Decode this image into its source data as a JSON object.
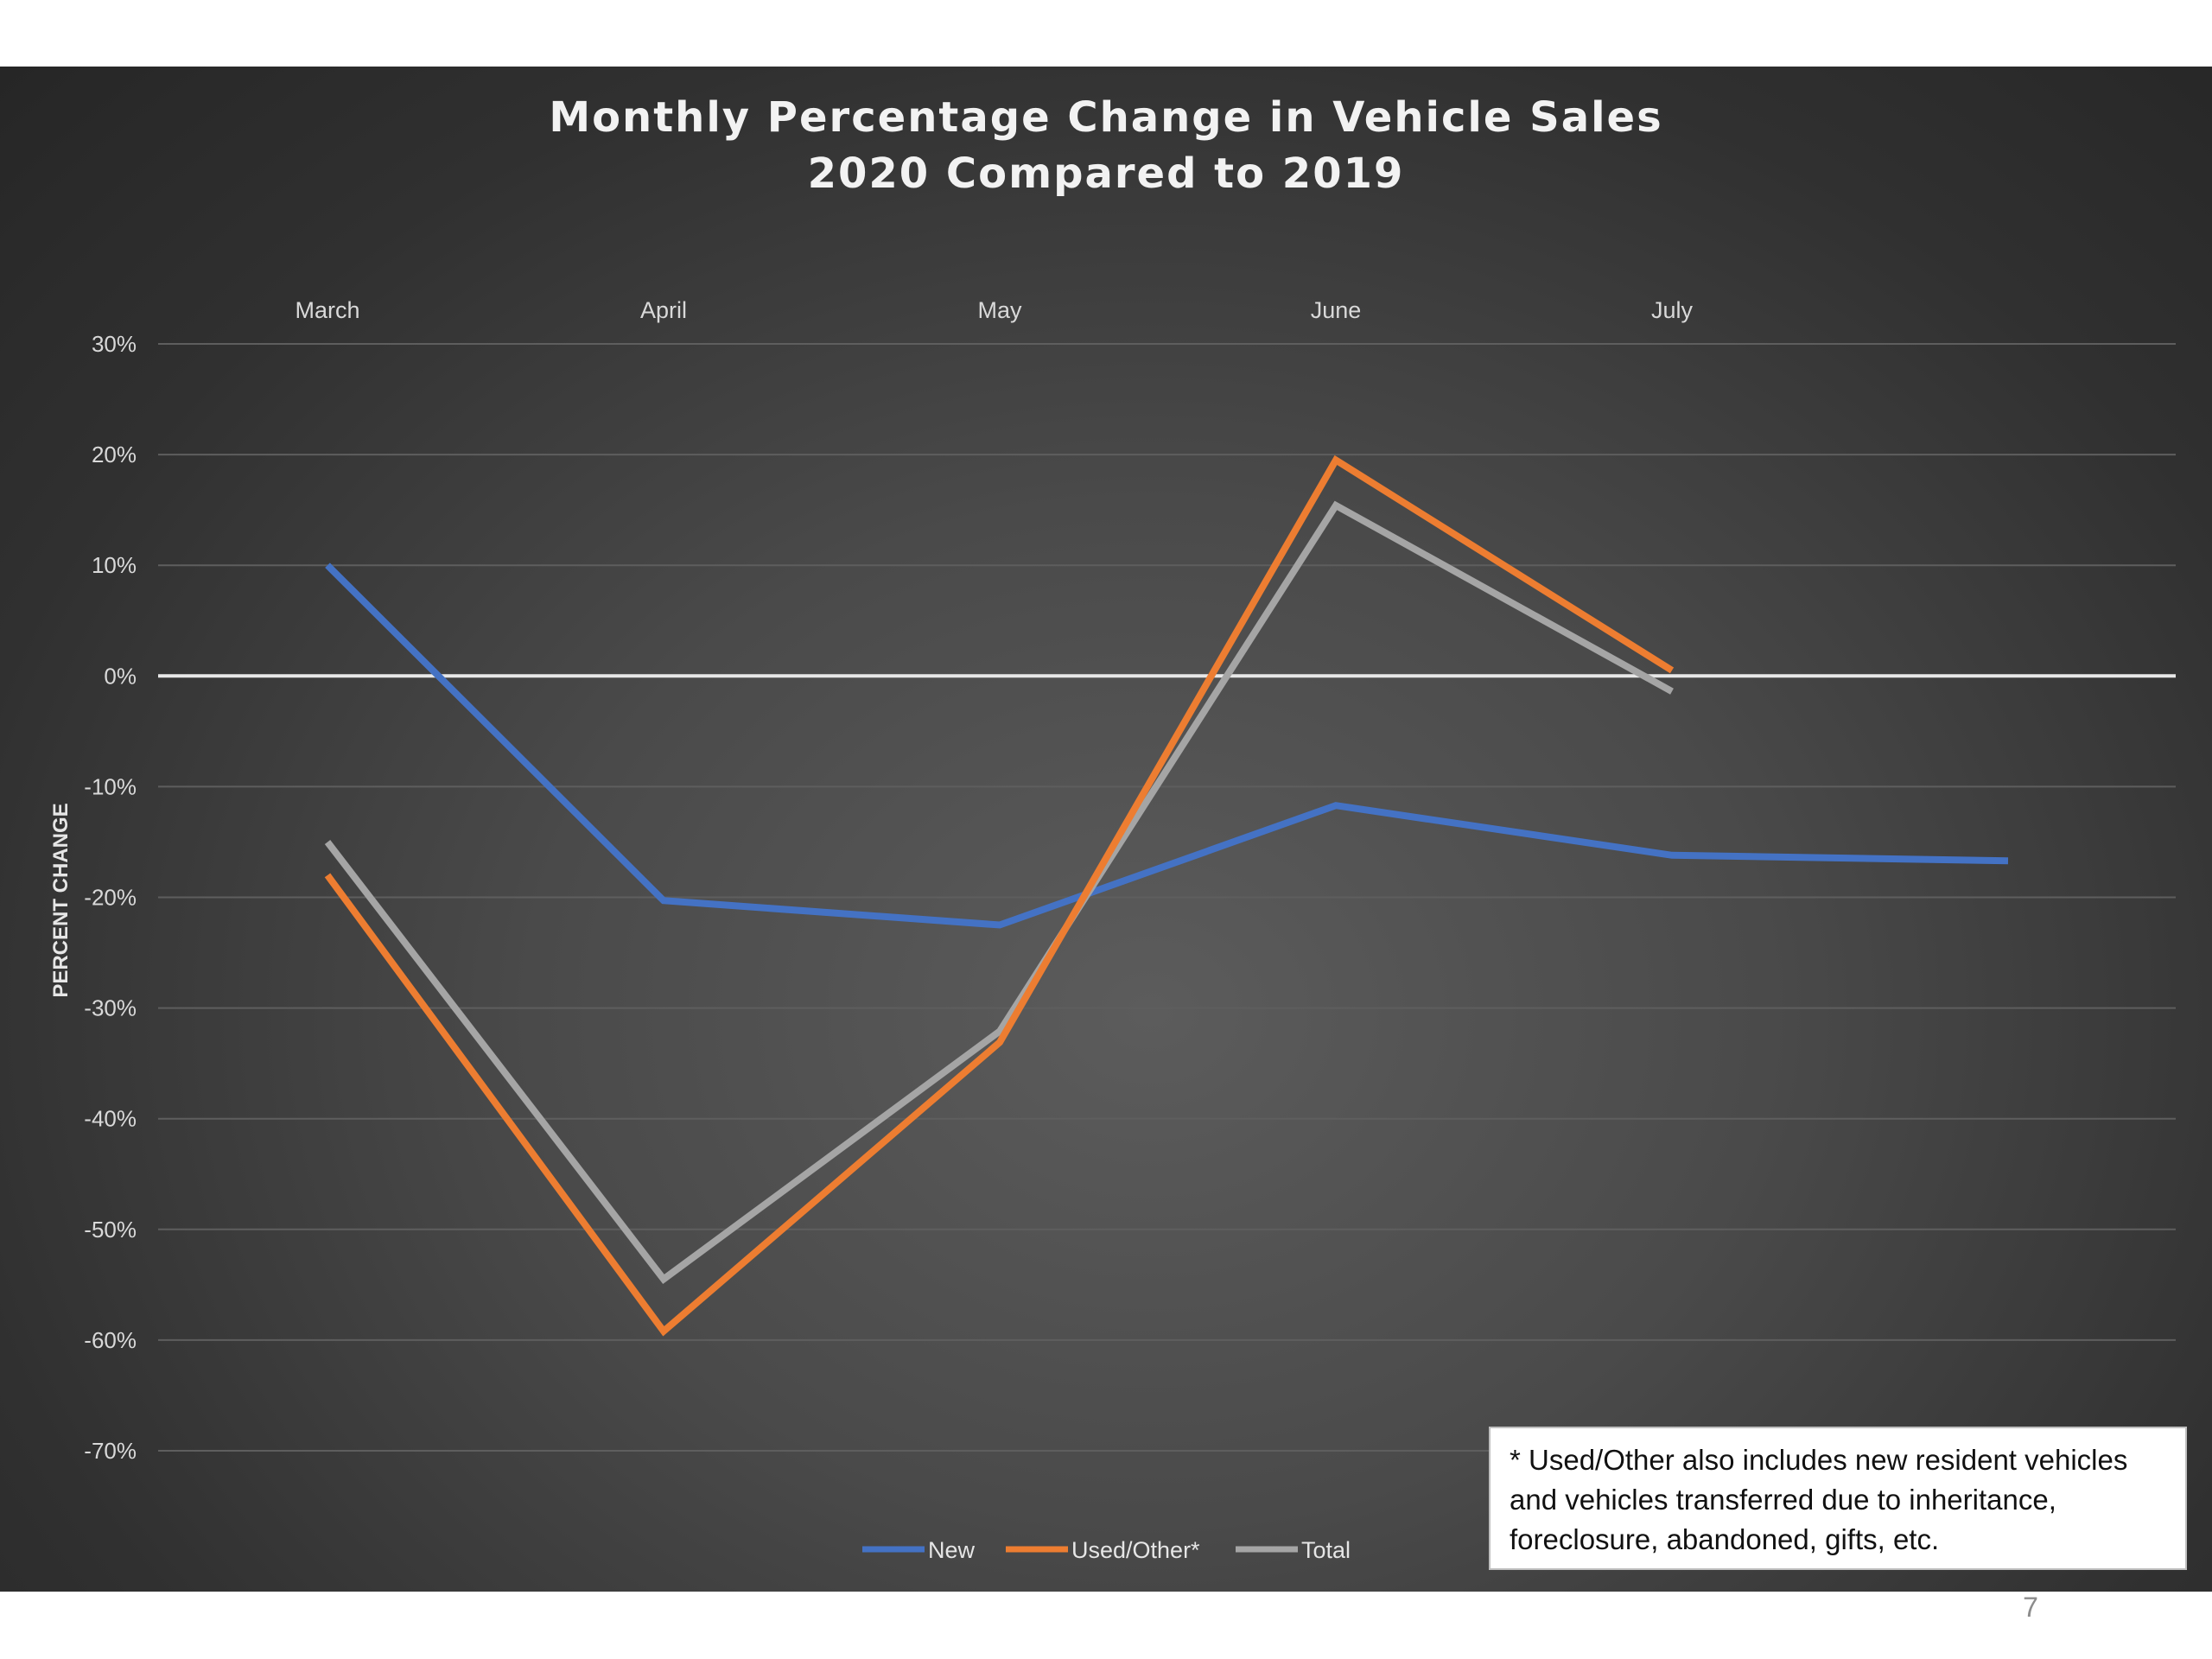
{
  "slide": {
    "page_number": "7"
  },
  "chart_data": {
    "type": "line",
    "title_lines": [
      "Monthly Percentage Change in Vehicle Sales",
      "2020 Compared to 2019"
    ],
    "ylabel": "PERCENT CHANGE",
    "xlabel": "",
    "categories": [
      "March",
      "April",
      "May",
      "June",
      "July",
      ""
    ],
    "yticks": [
      "30%",
      "20%",
      "10%",
      "0%",
      "-10%",
      "-20%",
      "-30%",
      "-40%",
      "-50%",
      "-60%",
      "-70%"
    ],
    "ylim": [
      -70,
      30
    ],
    "grid": true,
    "legend_position": "bottom",
    "series": [
      {
        "name": "New",
        "color": "#4472c4",
        "values": [
          10,
          -20.3,
          -22.5,
          -11.7,
          -16.2,
          -16.7
        ]
      },
      {
        "name": "Used/Other*",
        "color": "#ed7d31",
        "values": [
          -18,
          -59.2,
          -33.1,
          19.5,
          0.5,
          null
        ]
      },
      {
        "name": "Total",
        "color": "#a5a5a5",
        "values": [
          -15,
          -54.5,
          -32.1,
          15.4,
          -1.4,
          null
        ]
      }
    ]
  },
  "note": {
    "lines": [
      "* Used/Other also includes new resident vehicles",
      "and vehicles transferred due to inheritance,",
      "foreclosure, abandoned, gifts, etc."
    ]
  }
}
